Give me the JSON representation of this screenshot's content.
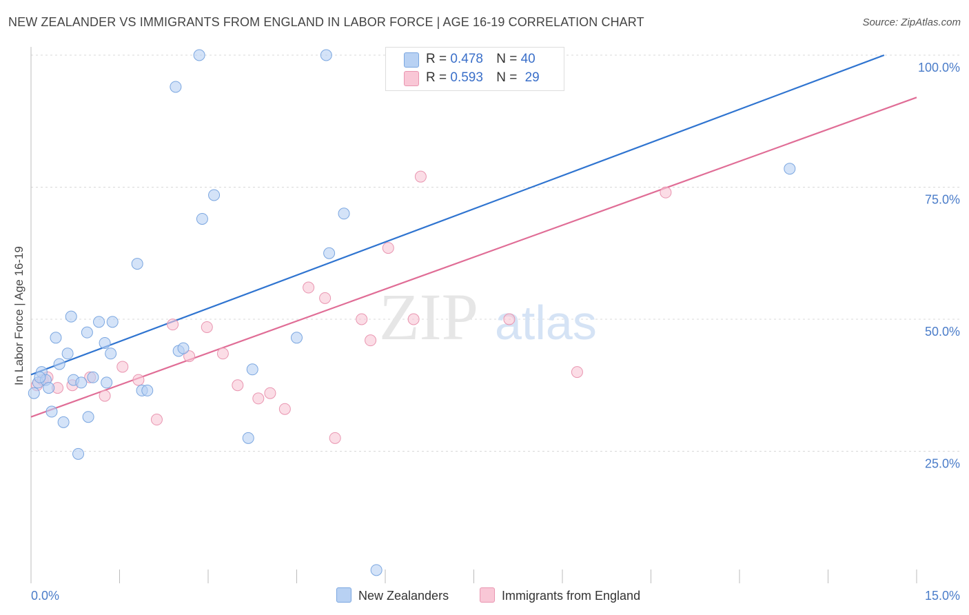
{
  "title": "NEW ZEALANDER VS IMMIGRANTS FROM ENGLAND IN LABOR FORCE | AGE 16-19 CORRELATION CHART",
  "source": "Source: ZipAtlas.com",
  "watermark": {
    "zip": "ZIP",
    "atlas": "atlas"
  },
  "colors": {
    "blue_fill": "#b8d1f3",
    "blue_stroke": "#7aa6e0",
    "blue_line": "#2f74d0",
    "pink_fill": "#f9c7d6",
    "pink_stroke": "#e995b0",
    "pink_line": "#e06d96",
    "grid": "#d8d8d8",
    "tick": "#4a7cc9"
  },
  "legend": {
    "r_label": "R =",
    "n_label": "N =",
    "blue": {
      "r": "0.478",
      "n": "40"
    },
    "pink": {
      "r": "0.593",
      "n": "29"
    }
  },
  "chart_data": {
    "type": "scatter",
    "title": "NEW ZEALANDER VS IMMIGRANTS FROM ENGLAND IN LABOR FORCE | AGE 16-19 CORRELATION CHART",
    "xlabel": "",
    "ylabel": "In Labor Force | Age 16-19",
    "xlim": [
      0,
      15
    ],
    "ylim": [
      0,
      100
    ],
    "x_tick_labels": [
      "0.0%",
      "15.0%"
    ],
    "y_ticks": [
      25,
      50,
      75,
      100
    ],
    "y_tick_labels": [
      "25.0%",
      "50.0%",
      "75.0%",
      "100.0%"
    ],
    "grid": true,
    "legend_position": "top-center",
    "series": [
      {
        "name": "New Zealanders",
        "color": "blue",
        "r": 0.478,
        "n": 40,
        "trend": {
          "x": [
            0,
            14.45
          ],
          "y": [
            39.5,
            100
          ]
        },
        "points": [
          [
            0.05,
            36.0
          ],
          [
            0.12,
            38.0
          ],
          [
            0.18,
            40.0
          ],
          [
            0.25,
            38.5
          ],
          [
            0.3,
            37.0
          ],
          [
            0.35,
            32.5
          ],
          [
            0.42,
            46.5
          ],
          [
            0.48,
            41.5
          ],
          [
            0.55,
            30.5
          ],
          [
            0.62,
            43.5
          ],
          [
            0.68,
            50.5
          ],
          [
            0.72,
            38.5
          ],
          [
            0.8,
            24.5
          ],
          [
            0.85,
            38.0
          ],
          [
            0.95,
            47.5
          ],
          [
            0.97,
            31.5
          ],
          [
            1.05,
            39.0
          ],
          [
            1.15,
            49.5
          ],
          [
            1.25,
            45.5
          ],
          [
            1.28,
            38.0
          ],
          [
            1.35,
            43.5
          ],
          [
            1.38,
            49.5
          ],
          [
            1.8,
            60.5
          ],
          [
            1.88,
            36.5
          ],
          [
            1.97,
            36.5
          ],
          [
            2.45,
            94.0
          ],
          [
            2.5,
            44.0
          ],
          [
            2.58,
            44.5
          ],
          [
            2.85,
            100.0
          ],
          [
            2.9,
            69.0
          ],
          [
            3.1,
            73.5
          ],
          [
            3.68,
            27.5
          ],
          [
            3.75,
            40.5
          ],
          [
            4.5,
            46.5
          ],
          [
            5.0,
            100.0
          ],
          [
            5.05,
            62.5
          ],
          [
            5.3,
            70.0
          ],
          [
            5.85,
            2.5
          ],
          [
            12.85,
            78.5
          ],
          [
            0.15,
            39.0
          ]
        ]
      },
      {
        "name": "Immigrants from England",
        "color": "pink",
        "r": 0.593,
        "n": 29,
        "trend": {
          "x": [
            0,
            15
          ],
          "y": [
            31.5,
            92.0
          ]
        },
        "points": [
          [
            0.1,
            37.5
          ],
          [
            0.2,
            38.5
          ],
          [
            0.28,
            39.0
          ],
          [
            0.45,
            37.0
          ],
          [
            0.7,
            37.5
          ],
          [
            1.0,
            39.0
          ],
          [
            1.25,
            35.5
          ],
          [
            1.55,
            41.0
          ],
          [
            1.82,
            38.5
          ],
          [
            2.13,
            31.0
          ],
          [
            2.4,
            49.0
          ],
          [
            2.68,
            43.0
          ],
          [
            2.98,
            48.5
          ],
          [
            3.25,
            43.5
          ],
          [
            3.5,
            37.5
          ],
          [
            3.85,
            35.0
          ],
          [
            4.05,
            36.0
          ],
          [
            4.3,
            33.0
          ],
          [
            4.7,
            56.0
          ],
          [
            4.98,
            54.0
          ],
          [
            5.15,
            27.5
          ],
          [
            5.6,
            50.0
          ],
          [
            5.75,
            46.0
          ],
          [
            6.05,
            63.5
          ],
          [
            6.48,
            50.0
          ],
          [
            6.6,
            77.0
          ],
          [
            8.1,
            50.0
          ],
          [
            9.25,
            40.0
          ],
          [
            10.75,
            74.0
          ]
        ]
      }
    ]
  },
  "bottom_legend": {
    "blue_label": "New Zealanders",
    "pink_label": "Immigrants from England"
  }
}
